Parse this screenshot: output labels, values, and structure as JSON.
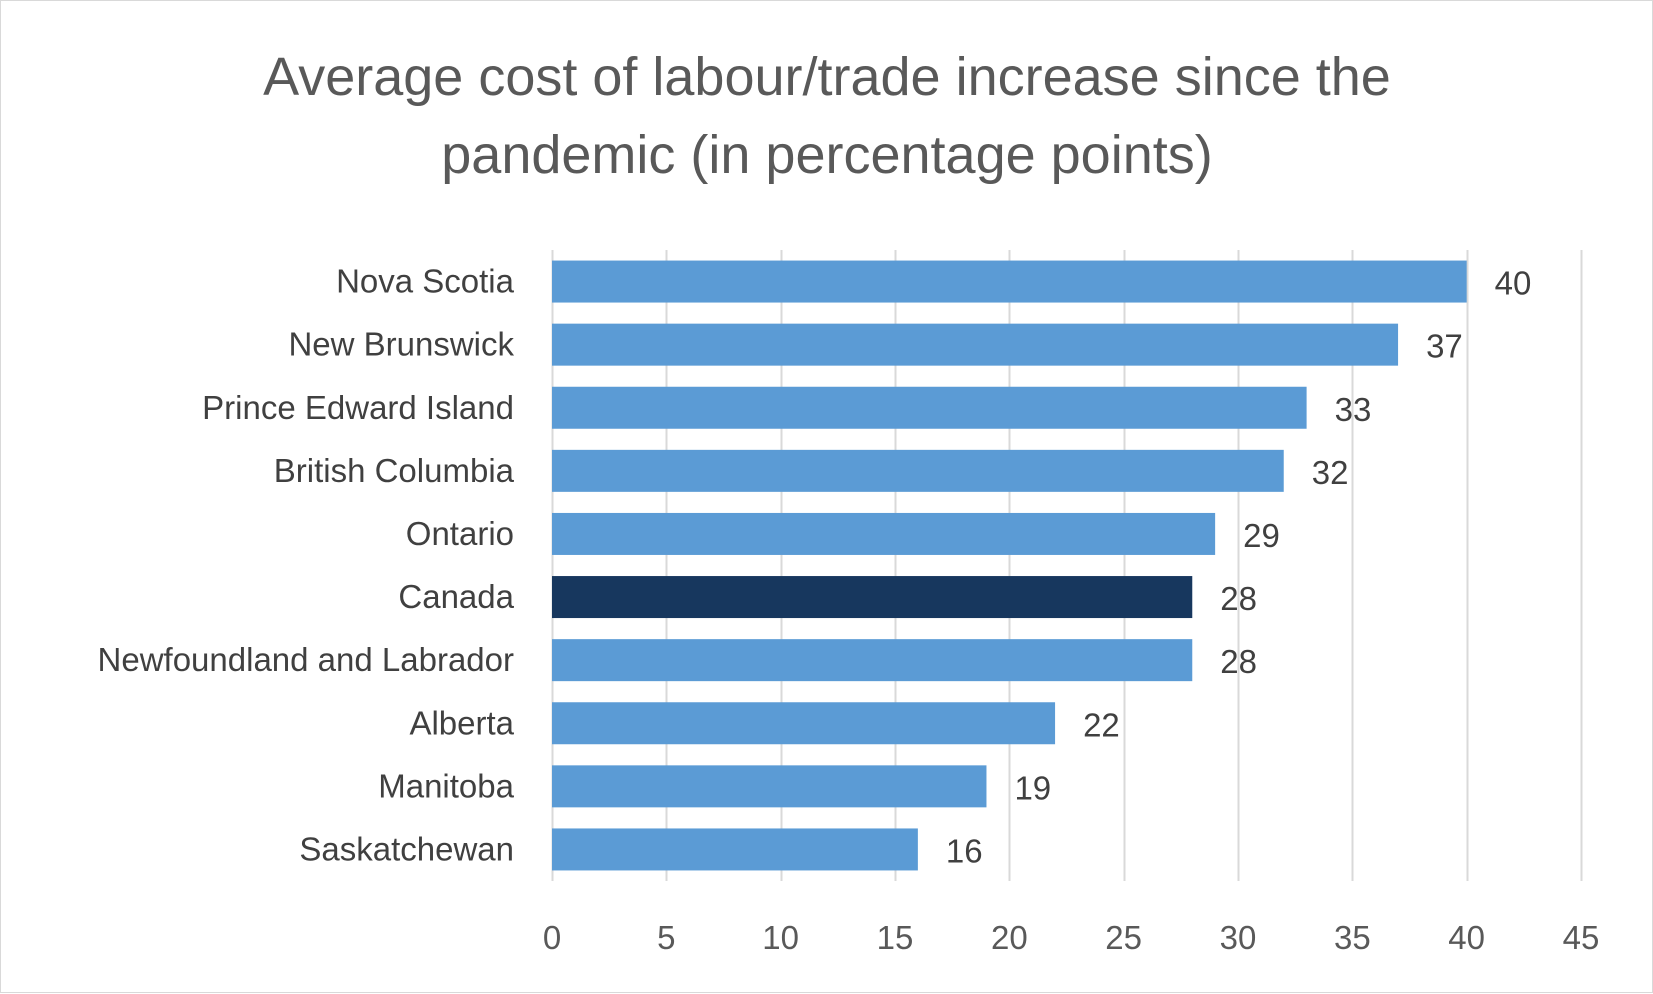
{
  "chart_data": {
    "type": "bar",
    "orientation": "horizontal",
    "title": "Average cost of labour/trade increase since the pandemic (in percentage points)",
    "title_lines": [
      "Average cost of labour/trade increase since the",
      "pandemic (in percentage points)"
    ],
    "categories": [
      "Nova Scotia",
      "New Brunswick",
      "Prince Edward Island",
      "British Columbia",
      "Ontario",
      "Canada",
      "Newfoundland and Labrador",
      "Alberta",
      "Manitoba",
      "Saskatchewan"
    ],
    "values": [
      40,
      37,
      33,
      32,
      29,
      28,
      28,
      22,
      19,
      16
    ],
    "data_labels": [
      "40",
      "37",
      "33",
      "32",
      "29",
      "28",
      "28",
      "22",
      "19",
      "16"
    ],
    "xlim": [
      0,
      45
    ],
    "xticks": [
      0,
      5,
      10,
      15,
      20,
      25,
      30,
      35,
      40,
      45
    ],
    "xlabel": "",
    "ylabel": "",
    "grid": "vertical",
    "legend": "none",
    "highlight_category": "Canada"
  },
  "colors": {
    "bar": "#5b9bd5",
    "highlight_bar": "#17375e",
    "gridline": "#d9d9d9",
    "title": "#595959",
    "label": "#404040"
  }
}
